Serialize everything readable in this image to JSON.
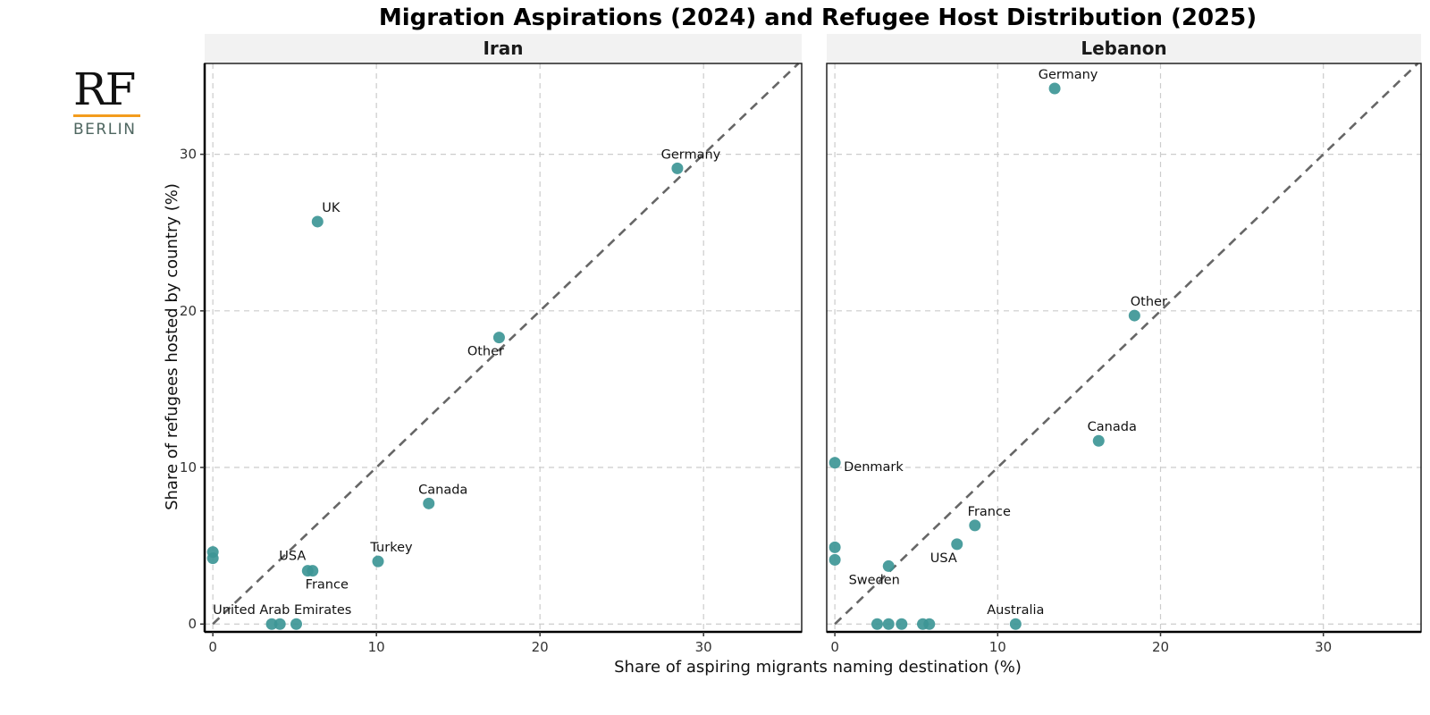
{
  "logo": {
    "top": "RF",
    "bottom": "BERLIN",
    "accent_color": "#f39c1d"
  },
  "chart_data": {
    "type": "scatter",
    "title": "Migration Aspirations (2024) and Refugee Host Distribution (2025)",
    "xlabel": "Share of aspiring migrants naming destination (%)",
    "ylabel": "Share of refugees hosted by country (%)",
    "xlim": [
      -0.5,
      36
    ],
    "ylim": [
      -0.5,
      35.8
    ],
    "xticks": [
      0,
      10,
      20,
      30
    ],
    "yticks": [
      0,
      10,
      20,
      30
    ],
    "grid": true,
    "reference_line": "y = x (dashed)",
    "point_color": "#3d9696",
    "panels": [
      {
        "name": "Iran",
        "points": [
          {
            "label": "Germany",
            "x": 28.4,
            "y": 29.1
          },
          {
            "label": "UK",
            "x": 6.4,
            "y": 25.7
          },
          {
            "label": "Other",
            "x": 17.5,
            "y": 18.3
          },
          {
            "label": "Canada",
            "x": 13.2,
            "y": 7.7
          },
          {
            "label": "Turkey",
            "x": 10.1,
            "y": 4.0
          },
          {
            "label": "USA",
            "x": 5.8,
            "y": 3.4
          },
          {
            "label": "France",
            "x": 6.1,
            "y": 3.4
          },
          {
            "label": "",
            "x": 0.0,
            "y": 4.6
          },
          {
            "label": "",
            "x": 0.0,
            "y": 4.2
          },
          {
            "label": "United Arab Emirates",
            "x": 3.6,
            "y": 0.0
          },
          {
            "label": "",
            "x": 4.1,
            "y": 0.0
          },
          {
            "label": "",
            "x": 5.1,
            "y": 0.0
          }
        ]
      },
      {
        "name": "Lebanon",
        "points": [
          {
            "label": "Germany",
            "x": 13.5,
            "y": 34.2
          },
          {
            "label": "Other",
            "x": 18.4,
            "y": 19.7
          },
          {
            "label": "Canada",
            "x": 16.2,
            "y": 11.7
          },
          {
            "label": "Denmark",
            "x": 0.0,
            "y": 10.3
          },
          {
            "label": "France",
            "x": 8.6,
            "y": 6.3
          },
          {
            "label": "USA",
            "x": 7.5,
            "y": 5.1
          },
          {
            "label": "",
            "x": 0.0,
            "y": 4.9
          },
          {
            "label": "",
            "x": 0.0,
            "y": 4.1
          },
          {
            "label": "Sweden",
            "x": 3.3,
            "y": 3.7
          },
          {
            "label": "",
            "x": 2.6,
            "y": 0.0
          },
          {
            "label": "",
            "x": 3.3,
            "y": 0.0
          },
          {
            "label": "",
            "x": 4.1,
            "y": 0.0
          },
          {
            "label": "",
            "x": 5.4,
            "y": 0.0
          },
          {
            "label": "",
            "x": 5.8,
            "y": 0.0
          },
          {
            "label": "Australia",
            "x": 11.1,
            "y": 0.0
          }
        ]
      }
    ]
  }
}
